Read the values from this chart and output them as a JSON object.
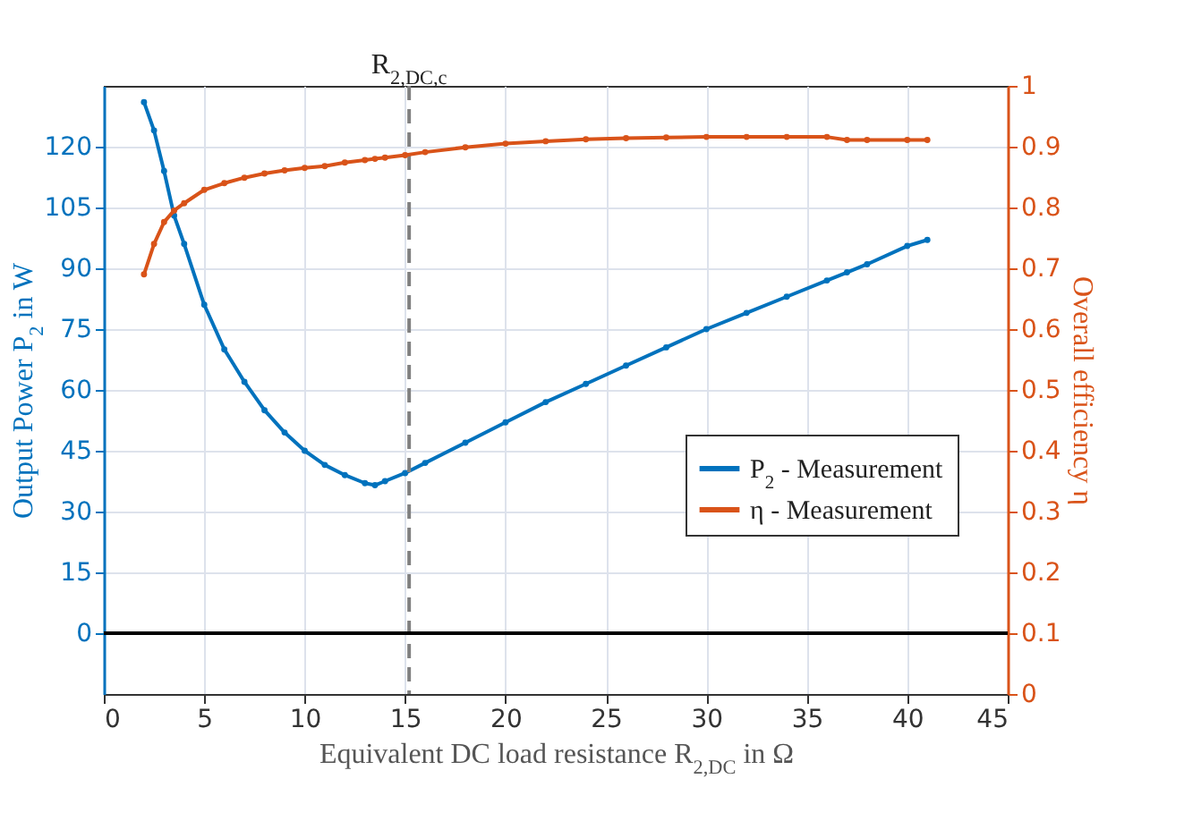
{
  "chart_data": {
    "type": "line",
    "xlabel": "Equivalent DC load resistance R$_{2,DC}$ in Ω",
    "ylabel": "Output Power P$_{2}$ in W",
    "y2label": "Overall efficiency η",
    "x": [
      2,
      2.5,
      3,
      3.5,
      4,
      5,
      6,
      7,
      8,
      9,
      10,
      11,
      12,
      13,
      13.5,
      14,
      15,
      16,
      18,
      20,
      22,
      24,
      26,
      28,
      30,
      32,
      34,
      36,
      37,
      38,
      40,
      41
    ],
    "series": [
      {
        "name": "P$_{2}$ - Measurement",
        "color": "#0072bd",
        "values": [
          131,
          124,
          114,
          103,
          96,
          81,
          70,
          62,
          55,
          49.5,
          45,
          41.5,
          39,
          37,
          36.5,
          37.5,
          39.5,
          42,
          47,
          52,
          57,
          61.5,
          66,
          70.5,
          75,
          79,
          83,
          87,
          89,
          91,
          95.5,
          97
        ]
      },
      {
        "name": "η - Measurement",
        "color": "#d95319",
        "axis": "y2",
        "values": [
          0.69,
          0.74,
          0.776,
          0.795,
          0.807,
          0.829,
          0.84,
          0.849,
          0.856,
          0.861,
          0.865,
          0.868,
          0.874,
          0.878,
          0.88,
          0.882,
          0.886,
          0.891,
          0.899,
          0.905,
          0.909,
          0.912,
          0.914,
          0.915,
          0.916,
          0.916,
          0.916,
          0.916,
          0.911,
          0.911,
          0.911,
          0.911
        ]
      }
    ],
    "xlim": [
      0,
      45
    ],
    "xticks": [
      0,
      5,
      10,
      15,
      20,
      25,
      30,
      35,
      40,
      45
    ],
    "ylim": [
      -15,
      135
    ],
    "yticks": [
      0,
      15,
      30,
      45,
      60,
      75,
      90,
      105,
      120
    ],
    "y2lim": [
      0,
      1
    ],
    "y2ticks": [
      0,
      0.1,
      0.2,
      0.3,
      0.4,
      0.5,
      0.6,
      0.7,
      0.8,
      0.9,
      1
    ],
    "ref_lines": [
      {
        "axis": "x",
        "value": 15.2,
        "label": "R$_{2,DC,c}$",
        "color": "#808080",
        "line_style": "dashed"
      },
      {
        "axis": "y",
        "value": 0,
        "color": "#000000",
        "line_style": "solid"
      }
    ],
    "grid": true,
    "legend": "right",
    "marker": "circle",
    "line_style": "solid"
  }
}
